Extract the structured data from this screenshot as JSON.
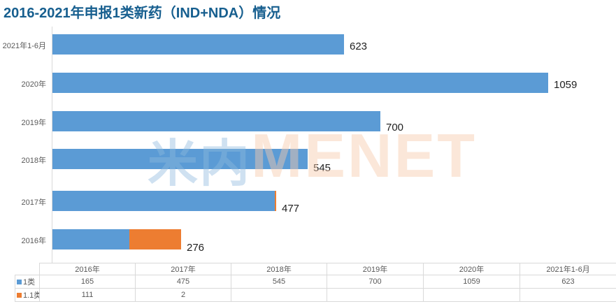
{
  "title": "2016-2021年申报1类新药（IND+NDA）情况",
  "watermark": {
    "part_cn": "米内",
    "part_en": "MENET"
  },
  "colors": {
    "title_text": "#175F8F",
    "series_class1": "#5B9BD5",
    "series_class1_1": "#ED7D31",
    "axis_line": "#D9D9D9",
    "table_border": "#D9D9D9",
    "value_label_text": "#1F1F1F",
    "secondary_text": "#595959"
  },
  "chart_data": {
    "type": "bar",
    "orientation": "horizontal",
    "stacked": true,
    "title": "2016-2021年申报1类新药（IND+NDA）情况",
    "categories": [
      "2016年",
      "2017年",
      "2018年",
      "2019年",
      "2020年",
      "2021年1-6月"
    ],
    "category_order_top_to_bottom": [
      "2021年1-6月",
      "2020年",
      "2019年",
      "2018年",
      "2017年",
      "2016年"
    ],
    "series": [
      {
        "name": "1类",
        "color": "#5B9BD5",
        "values": [
          165,
          475,
          545,
          700,
          1059,
          623
        ]
      },
      {
        "name": "1.1类",
        "color": "#ED7D31",
        "values": [
          111,
          2,
          null,
          null,
          null,
          null
        ]
      }
    ],
    "total_labels": [
      276,
      477,
      545,
      700,
      1059,
      623
    ],
    "xlabel": "",
    "ylabel": "",
    "xlim": [
      0,
      1205
    ],
    "grid": false,
    "legend_position": "data-table-left"
  },
  "table": {
    "headers": [
      "",
      "2016年",
      "2017年",
      "2018年",
      "2019年",
      "2020年",
      "2021年1-6月"
    ],
    "rows": [
      {
        "label": "1类",
        "legend_color": "#5B9BD5",
        "values": [
          "165",
          "475",
          "545",
          "700",
          "1059",
          "623"
        ]
      },
      {
        "label": "1.1类",
        "legend_color": "#ED7D31",
        "values": [
          "111",
          "2",
          "",
          "",
          "",
          ""
        ]
      }
    ]
  }
}
